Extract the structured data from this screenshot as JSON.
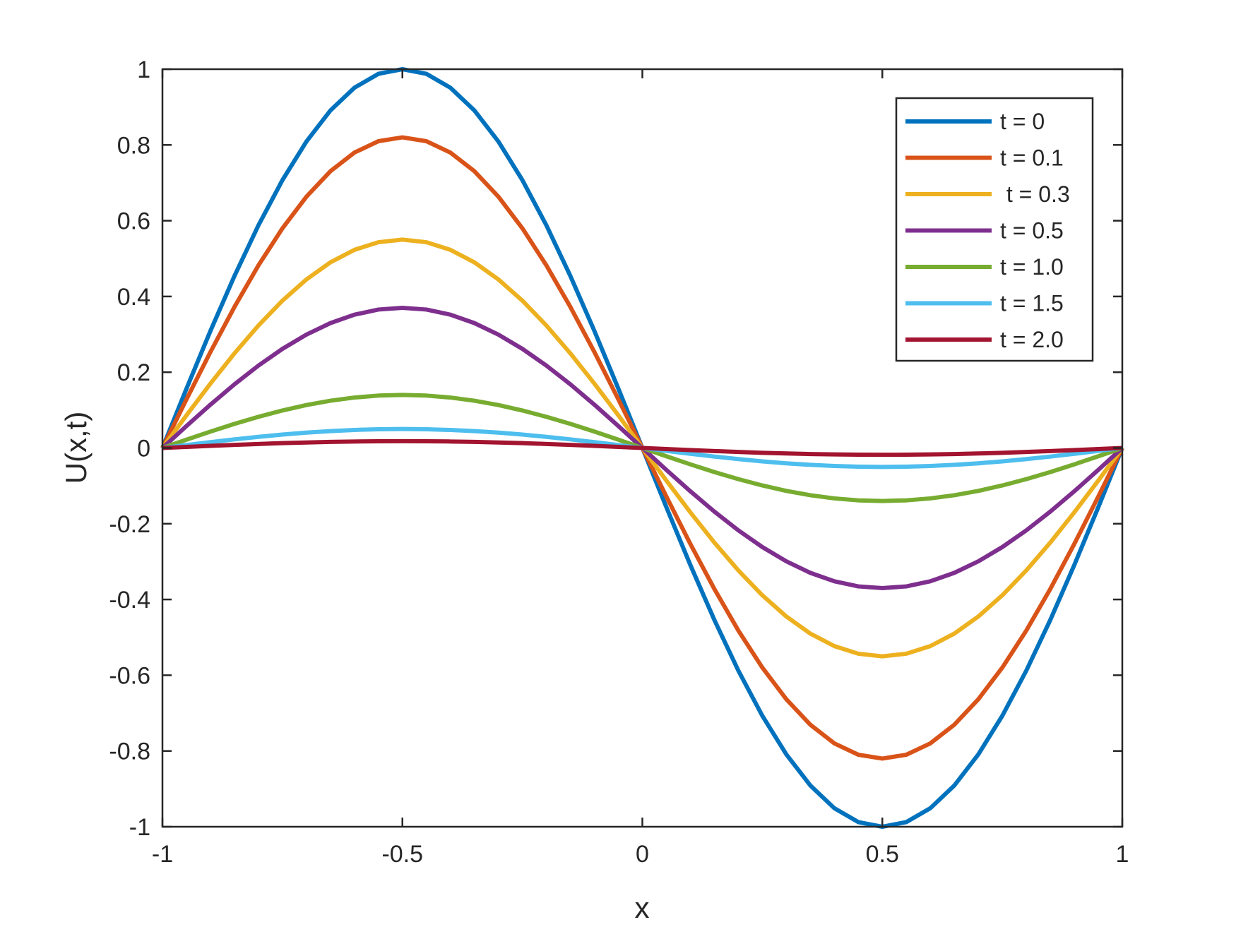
{
  "chart_data": {
    "type": "line",
    "xlabel": "x",
    "ylabel": "U(x,t)",
    "xlim": [
      -1,
      1
    ],
    "ylim": [
      -1,
      1
    ],
    "xticks": [
      -1,
      -0.5,
      0,
      0.5,
      1
    ],
    "xtick_labels": [
      "-1",
      "-0.5",
      "0",
      "0.5",
      "1"
    ],
    "yticks": [
      -1,
      -0.8,
      -0.6,
      -0.4,
      -0.2,
      0,
      0.2,
      0.4,
      0.6,
      0.8,
      1
    ],
    "ytick_labels": [
      "-1",
      "-0.8",
      "-0.6",
      "-0.4",
      "-0.2",
      "0",
      "0.2",
      "0.4",
      "0.6",
      "0.8",
      "1"
    ],
    "grid": false,
    "legend_position": "top-right",
    "x_sample_step": 0.05,
    "series": [
      {
        "name": "t = 0",
        "amplitude": 1.0,
        "color": "#0072BD"
      },
      {
        "name": "t = 0.1",
        "amplitude": 0.82,
        "color": "#D95319"
      },
      {
        "name": " t = 0.3",
        "amplitude": 0.55,
        "color": "#EDB120"
      },
      {
        "name": "t = 0.5",
        "amplitude": 0.37,
        "color": "#7E2F8E"
      },
      {
        "name": "t = 1.0",
        "amplitude": 0.14,
        "color": "#77AC30"
      },
      {
        "name": "t = 1.5",
        "amplitude": 0.05,
        "color": "#4DBEEE"
      },
      {
        "name": "t = 2.0",
        "amplitude": 0.018,
        "color": "#A2142F"
      }
    ],
    "function": "U(x,t) = -amplitude * sin(pi * x)"
  }
}
